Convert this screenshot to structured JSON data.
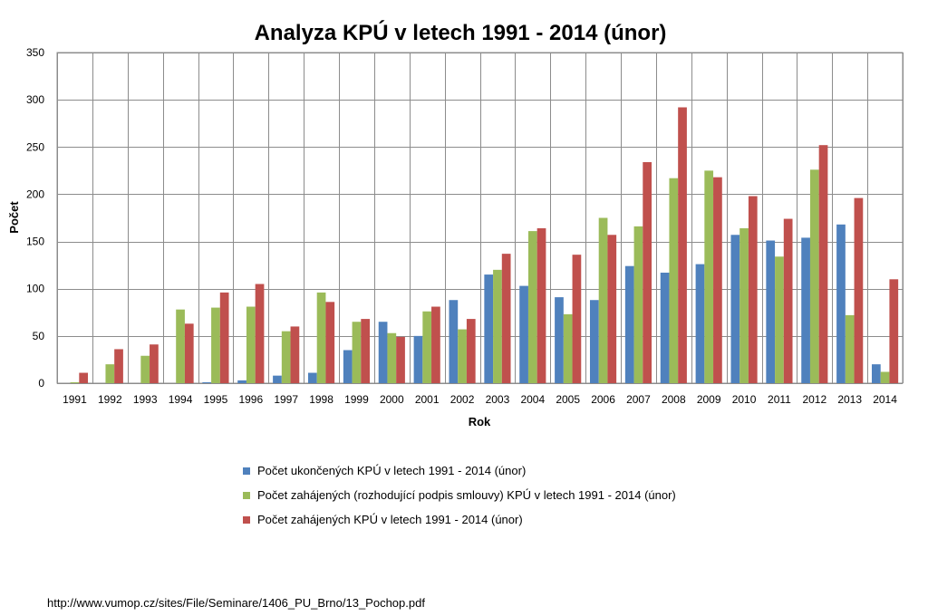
{
  "chart_data": {
    "type": "bar",
    "title": "Analyza KPÚ v letech 1991 - 2014 (únor)",
    "xlabel": "Rok",
    "ylabel": "Počet",
    "ylim": [
      0,
      350
    ],
    "yticks": [
      0,
      50,
      100,
      150,
      200,
      250,
      300,
      350
    ],
    "grid": true,
    "legend_position": "bottom",
    "categories": [
      "1991",
      "1992",
      "1993",
      "1994",
      "1995",
      "1996",
      "1997",
      "1998",
      "1999",
      "2000",
      "2001",
      "2002",
      "2003",
      "2004",
      "2005",
      "2006",
      "2007",
      "2008",
      "2009",
      "2010",
      "2011",
      "2012",
      "2013",
      "2014"
    ],
    "series": [
      {
        "name": "Počet ukončených KPÚ v letech 1991 - 2014 (únor)",
        "color": "#4f81bd",
        "values": [
          0,
          0,
          0,
          0,
          1,
          3,
          8,
          11,
          35,
          65,
          50,
          88,
          115,
          103,
          91,
          88,
          124,
          117,
          126,
          157,
          151,
          154,
          168,
          20
        ]
      },
      {
        "name": "Počet zahájených (rozhodující podpis smlouvy) KPÚ v letech 1991 - 2014 (únor)",
        "color": "#9bbb59",
        "values": [
          1,
          20,
          29,
          78,
          80,
          81,
          55,
          96,
          65,
          53,
          76,
          57,
          120,
          161,
          73,
          175,
          166,
          217,
          225,
          164,
          134,
          226,
          72,
          12
        ]
      },
      {
        "name": "Počet zahájených KPÚ v letech 1991 - 2014 (únor)",
        "color": "#c0504d",
        "values": [
          11,
          36,
          41,
          63,
          96,
          105,
          60,
          86,
          68,
          49,
          81,
          68,
          137,
          164,
          136,
          157,
          234,
          292,
          218,
          198,
          174,
          252,
          196,
          110
        ]
      }
    ]
  },
  "source": "http://www.vumop.cz/sites/File/Seminare/1406_PU_Brno/13_Pochop.pdf"
}
